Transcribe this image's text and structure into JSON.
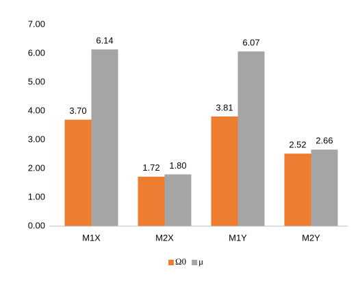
{
  "chart_data": {
    "type": "bar",
    "categories": [
      "M1X",
      "M2X",
      "M1Y",
      "M2Y"
    ],
    "series": [
      {
        "name": "Ω0",
        "color": "#ed7d31",
        "values": [
          3.7,
          1.72,
          3.81,
          2.52
        ],
        "value_labels": [
          "3.70",
          "1.72",
          "3.81",
          "2.52"
        ]
      },
      {
        "name": "μ",
        "color": "#a5a5a5",
        "values": [
          6.14,
          1.8,
          6.07,
          2.66
        ],
        "value_labels": [
          "6.14",
          "1.80",
          "6.07",
          "2.66"
        ]
      }
    ],
    "ylim": [
      0,
      7
    ],
    "yticks": [
      {
        "value": 0,
        "label": "0.00"
      },
      {
        "value": 1,
        "label": "1.00"
      },
      {
        "value": 2,
        "label": "2.00"
      },
      {
        "value": 3,
        "label": "3.00"
      },
      {
        "value": 4,
        "label": "4.00"
      },
      {
        "value": 5,
        "label": "5.00"
      },
      {
        "value": 6,
        "label": "6.00"
      },
      {
        "value": 7,
        "label": "7.00"
      }
    ],
    "grid": false,
    "legend": "bottom"
  }
}
